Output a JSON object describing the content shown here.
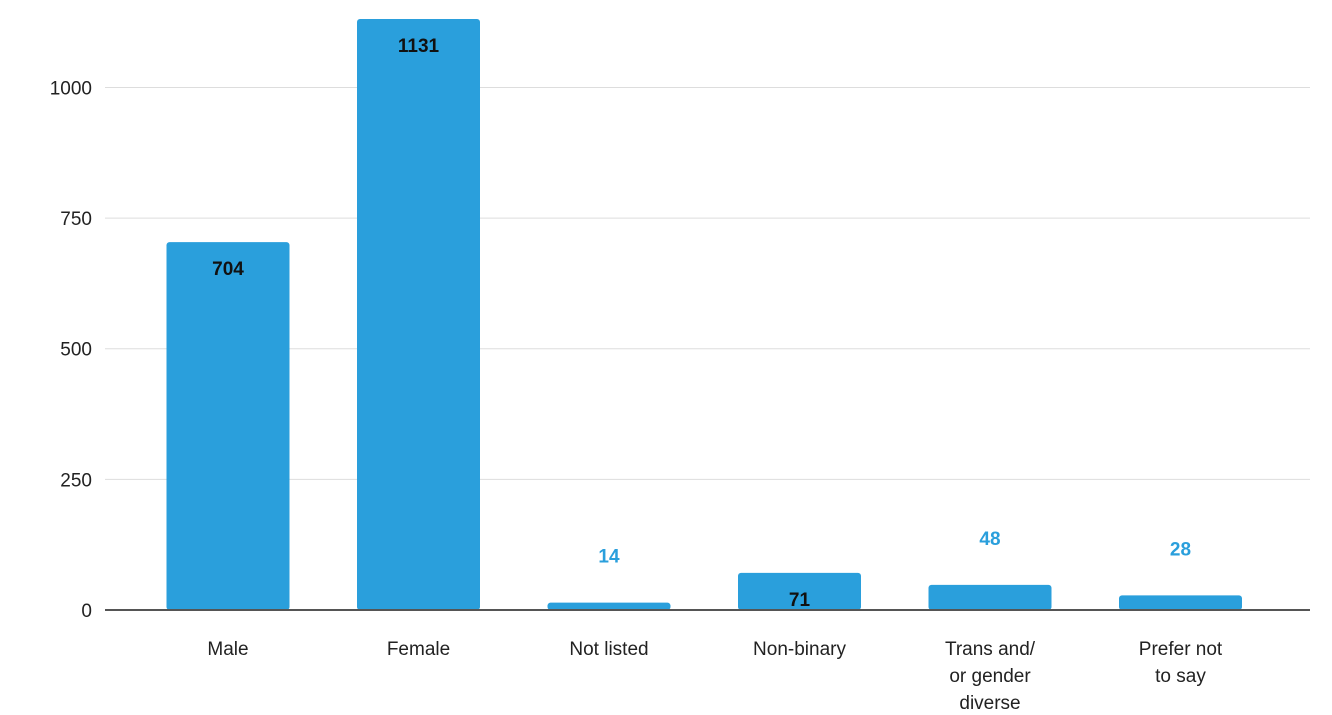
{
  "chart_data": {
    "type": "bar",
    "title": "",
    "xlabel": "",
    "ylabel": "",
    "categories": [
      [
        "Male"
      ],
      [
        "Female"
      ],
      [
        "Not listed"
      ],
      [
        "Non-binary"
      ],
      [
        "Trans and/",
        "or gender",
        "diverse"
      ],
      [
        "Prefer not",
        "to say"
      ]
    ],
    "values": [
      704,
      1131,
      14,
      71,
      48,
      28
    ],
    "ylim": [
      0,
      1131
    ],
    "yticks": [
      0,
      250,
      500,
      750,
      1000
    ],
    "grid": true,
    "legend": "none",
    "colors": {
      "bar": "#2a9fdc",
      "label_inside": "#111111",
      "label_outside": "#2a9fdc",
      "grid": "#dddddd",
      "baseline": "#555555"
    }
  }
}
